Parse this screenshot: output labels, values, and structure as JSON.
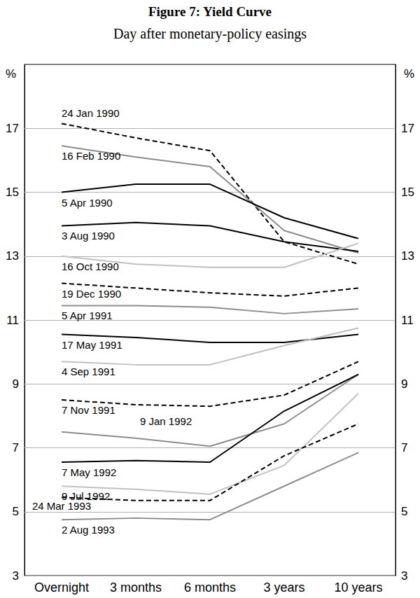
{
  "chart_data": {
    "type": "line",
    "title": "Figure 7: Yield Curve",
    "subtitle": "Day after monetary-policy easings",
    "ylabel": "%",
    "categories": [
      "Overnight",
      "3 months",
      "6 months",
      "3 years",
      "10 years"
    ],
    "ylim": [
      3,
      19
    ],
    "yticks": [
      3,
      5,
      7,
      9,
      11,
      13,
      15,
      17
    ],
    "grid": true,
    "series": [
      {
        "name": "24 Jan 1990",
        "color": "#000000",
        "line_style": "dashed",
        "values": [
          17.15,
          16.7,
          16.3,
          13.45,
          12.75
        ]
      },
      {
        "name": "16 Feb 1990",
        "color": "#8c8c8c",
        "line_style": "solid",
        "values": [
          16.45,
          16.1,
          15.8,
          13.8,
          13.1
        ]
      },
      {
        "name": "5 Apr 1990",
        "color": "#000000",
        "line_style": "solid",
        "values": [
          15.0,
          15.25,
          15.25,
          14.2,
          13.55
        ]
      },
      {
        "name": "3 Aug 1990",
        "color": "#000000",
        "line_style": "solid",
        "values": [
          13.95,
          14.05,
          13.95,
          13.45,
          13.15
        ]
      },
      {
        "name": "16 Oct 1990",
        "color": "#c0c0c0",
        "line_style": "solid",
        "values": [
          13.0,
          12.75,
          12.65,
          12.65,
          13.4
        ]
      },
      {
        "name": "19 Dec 1990",
        "color": "#000000",
        "line_style": "dashed",
        "values": [
          12.15,
          12.0,
          11.85,
          11.75,
          12.0
        ]
      },
      {
        "name": "5 Apr 1991",
        "color": "#8c8c8c",
        "line_style": "solid",
        "values": [
          11.45,
          11.45,
          11.4,
          11.2,
          11.35
        ]
      },
      {
        "name": "17 May 1991",
        "color": "#000000",
        "line_style": "solid",
        "values": [
          10.55,
          10.45,
          10.3,
          10.3,
          10.55
        ]
      },
      {
        "name": "4 Sep 1991",
        "color": "#c0c0c0",
        "line_style": "solid",
        "values": [
          9.7,
          9.6,
          9.6,
          10.2,
          10.75
        ]
      },
      {
        "name": "7 Nov 1991",
        "color": "#000000",
        "line_style": "dashed",
        "values": [
          8.5,
          8.35,
          8.3,
          8.65,
          9.7
        ]
      },
      {
        "name": "9 Jan 1992",
        "color": "#8c8c8c",
        "line_style": "solid",
        "values": [
          7.5,
          7.3,
          7.05,
          7.75,
          9.3
        ]
      },
      {
        "name": "7 May 1992",
        "color": "#000000",
        "line_style": "solid",
        "values": [
          6.55,
          6.6,
          6.55,
          8.15,
          9.3
        ]
      },
      {
        "name": "9 Jul 1992",
        "color": "#c0c0c0",
        "line_style": "solid",
        "values": [
          5.8,
          5.7,
          5.55,
          6.45,
          8.7
        ]
      },
      {
        "name": "24 Mar 1993",
        "color": "#000000",
        "line_style": "dashed",
        "values": [
          5.45,
          5.35,
          5.35,
          6.75,
          7.75
        ]
      },
      {
        "name": "2 Aug 1993",
        "color": "#8c8c8c",
        "line_style": "solid",
        "values": [
          4.75,
          4.8,
          4.75,
          5.8,
          6.85
        ]
      }
    ]
  }
}
